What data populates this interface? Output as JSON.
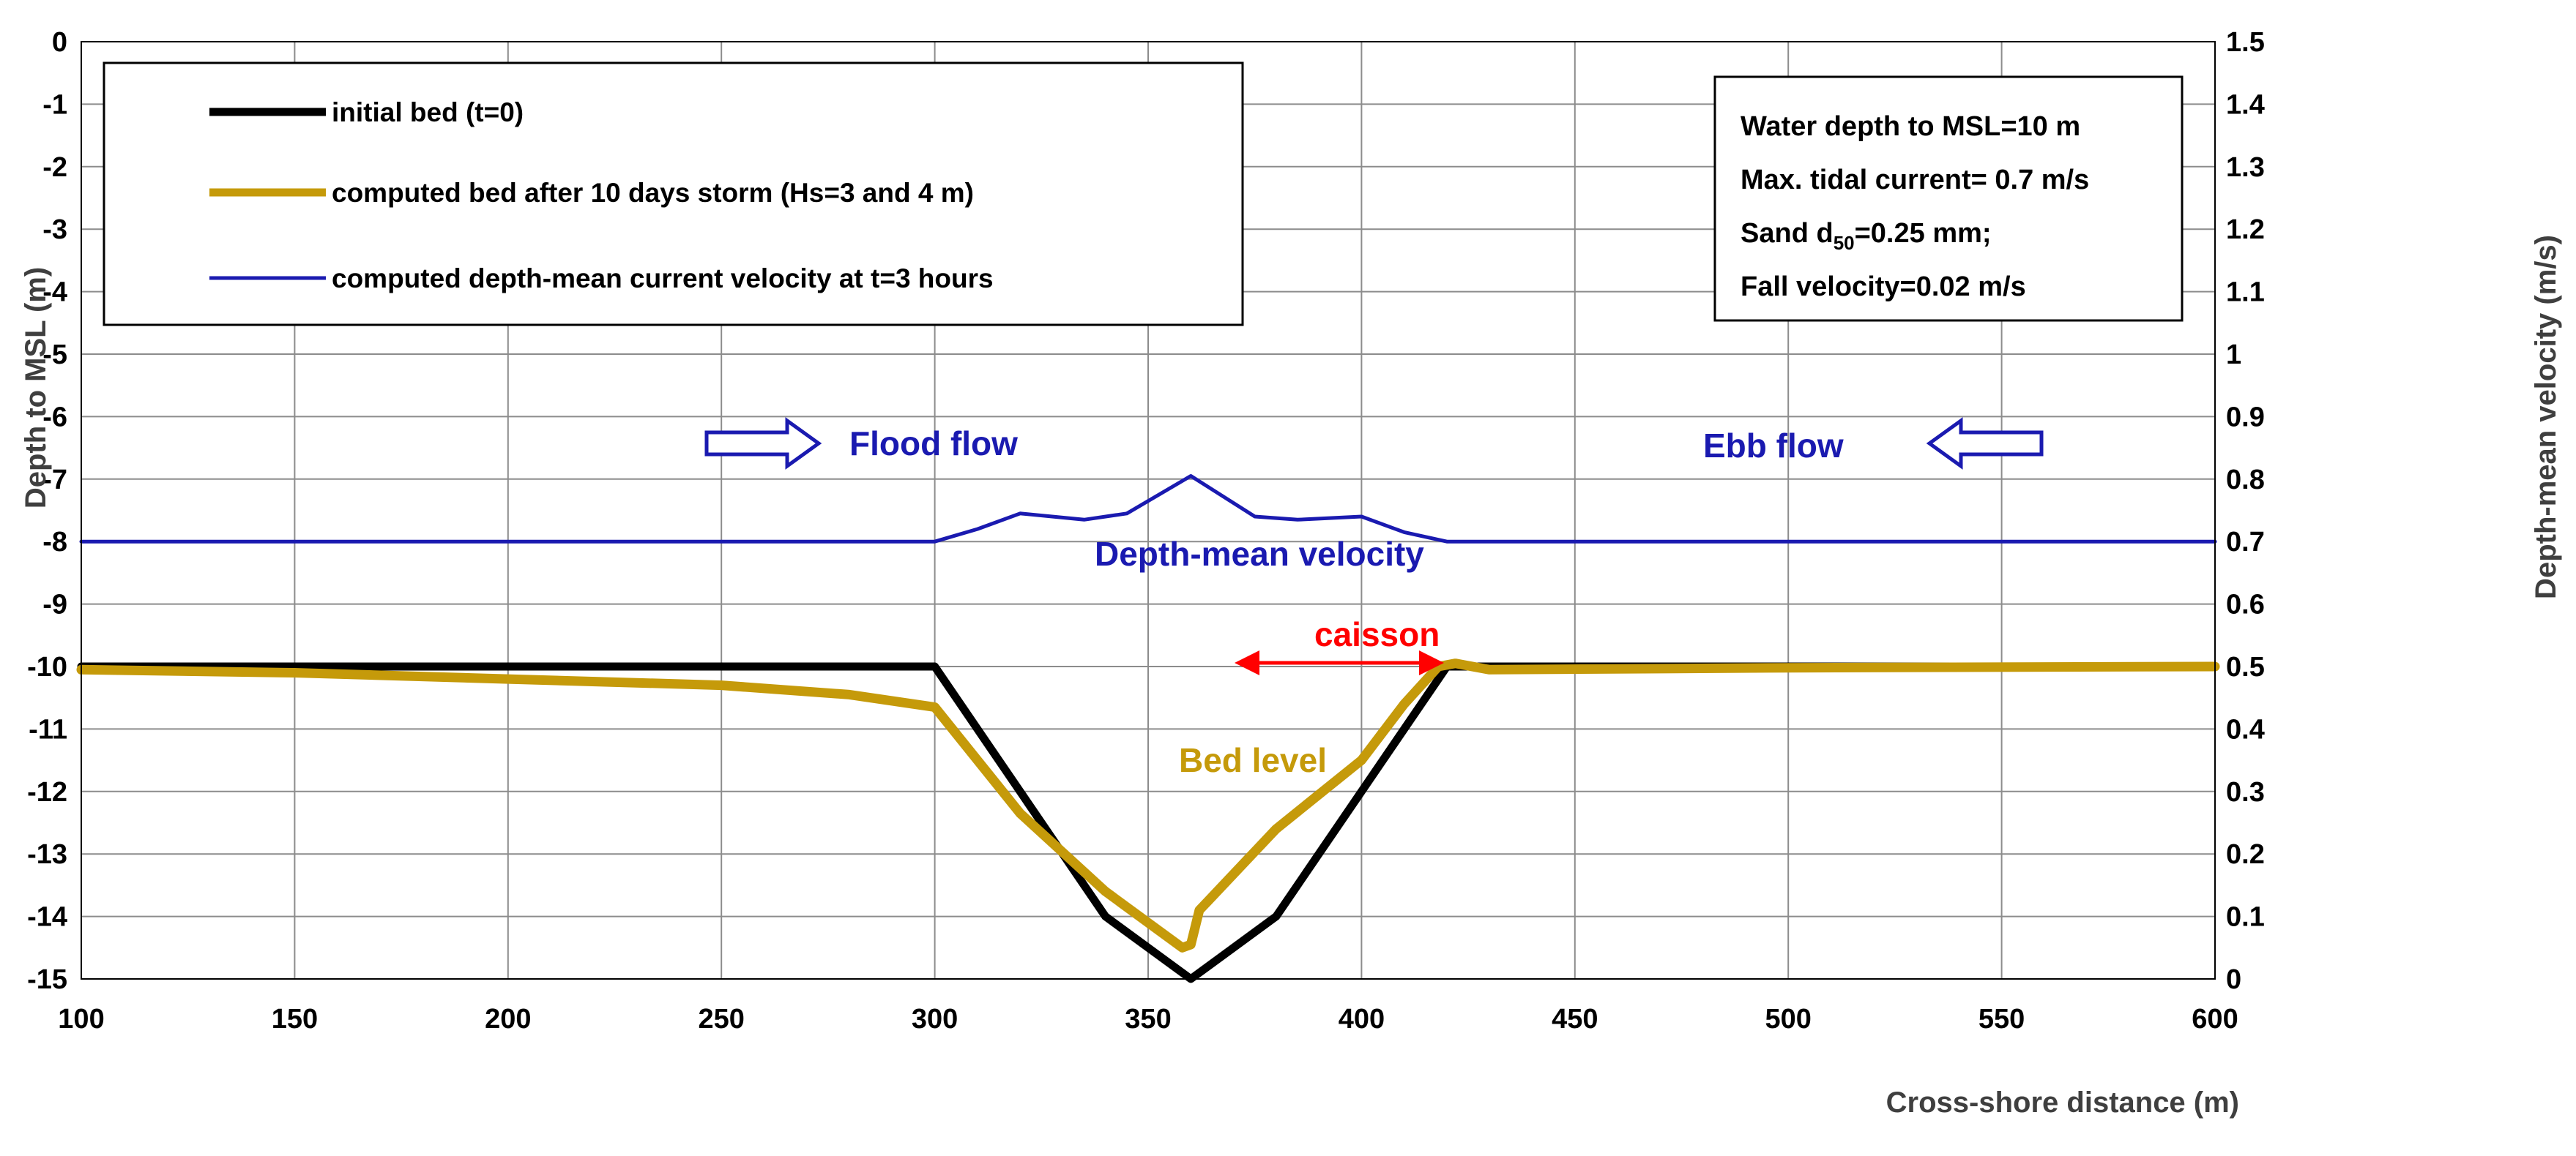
{
  "chart_data": {
    "type": "line",
    "xlabel": "Cross-shore distance (m)",
    "ylabel": "Depth to MSL (m)",
    "y2label": "Depth-mean velocity (m/s)",
    "xlim": [
      100,
      600
    ],
    "ylim": [
      -15,
      0
    ],
    "y2lim": [
      0,
      1.5
    ],
    "x_ticks": [
      "100",
      "150",
      "200",
      "250",
      "300",
      "350",
      "400",
      "450",
      "500",
      "550",
      "600"
    ],
    "y_ticks": [
      "0",
      "-1",
      "-2",
      "-3",
      "-4",
      "-5",
      "-6",
      "-7",
      "-8",
      "-9",
      "-10",
      "-11",
      "-12",
      "-13",
      "-14",
      "-15"
    ],
    "y2_ticks": [
      "1.5",
      "1.4",
      "1.3",
      "1.2",
      "1.1",
      "1",
      "0.9",
      "0.8",
      "0.7",
      "0.6",
      "0.5",
      "0.4",
      "0.3",
      "0.2",
      "0.1",
      "0"
    ],
    "grid": true,
    "legend_position": "top-left",
    "series": [
      {
        "name": "initial bed (t=0)",
        "axis": "left",
        "color": "#000000",
        "x": [
          100,
          300,
          340,
          360,
          380,
          420,
          600
        ],
        "y": [
          -10,
          -10,
          -14,
          -15,
          -14,
          -10,
          -10
        ]
      },
      {
        "name": "computed bed after 10 days storm (Hs=3 and 4 m)",
        "axis": "left",
        "color": "#c59a0a",
        "x": [
          100,
          150,
          200,
          250,
          280,
          300,
          320,
          340,
          358,
          360,
          362,
          380,
          400,
          410,
          418,
          422,
          430,
          500,
          600
        ],
        "y": [
          -10.05,
          -10.1,
          -10.2,
          -10.3,
          -10.45,
          -10.65,
          -12.35,
          -13.6,
          -14.5,
          -14.45,
          -13.9,
          -12.6,
          -11.5,
          -10.6,
          -10.0,
          -9.95,
          -10.05,
          -10.02,
          -10.0
        ]
      },
      {
        "name": "computed depth-mean current velocity at t=3 hours",
        "axis": "right",
        "color": "#1a1ab0",
        "x": [
          100,
          300,
          310,
          320,
          335,
          345,
          360,
          375,
          385,
          400,
          410,
          420,
          600
        ],
        "y": [
          0.7,
          0.7,
          0.72,
          0.745,
          0.735,
          0.745,
          0.805,
          0.74,
          0.735,
          0.74,
          0.715,
          0.7,
          0.7
        ]
      }
    ],
    "info_box": [
      "Water depth to MSL=10 m",
      "Max. tidal current= 0.7 m/s",
      "Sand d50=0.25 mm;",
      "Fall velocity=0.02 m/s"
    ],
    "sand_prefix": "Sand d",
    "sand_sub": "50",
    "sand_suffix": "=0.25 mm;",
    "annotations": {
      "flood_flow": "Flood flow",
      "ebb_flow": "Ebb flow",
      "depth_mean_velocity": "Depth-mean velocity",
      "caisson": "caisson",
      "bed_level": "Bed level"
    },
    "colors": {
      "blue": "#1a1ab0",
      "gold": "#c59a0a",
      "red": "#ff0000",
      "black": "#000000"
    }
  }
}
